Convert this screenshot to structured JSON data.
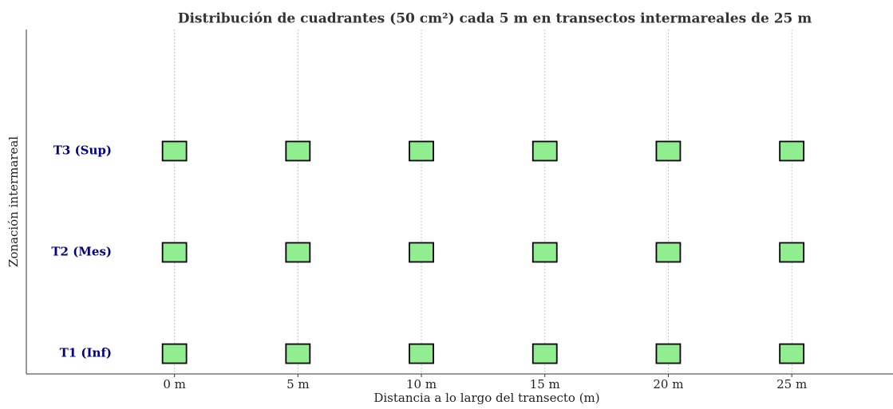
{
  "chart_data": {
    "type": "scatter",
    "title": "Distribución de cuadrantes (50 cm²) cada 5 m en transectos intermareales de 25 m",
    "x_label": "Distancia a lo largo del transecto (m)",
    "y_label": "Zonación intermareal",
    "x": [
      0,
      5,
      10,
      15,
      20,
      25,
      0,
      5,
      10,
      15,
      20,
      25,
      0,
      5,
      10,
      15,
      20,
      25
    ],
    "y": [
      0,
      0,
      0,
      0,
      0,
      0,
      1,
      1,
      1,
      1,
      1,
      1,
      2,
      2,
      2,
      2,
      2,
      2
    ],
    "color": "#90ee90",
    "edge_color": "#000000",
    "marker": "square",
    "xlim": [
      -6,
      29.1
    ],
    "ylim": [
      -0.2,
      3.2
    ],
    "xticks": [
      {
        "value": 0,
        "label": "0 m"
      },
      {
        "value": 5,
        "label": "5 m"
      },
      {
        "value": 10,
        "label": "10 m"
      },
      {
        "value": 15,
        "label": "15 m"
      },
      {
        "value": 20,
        "label": "20 m"
      },
      {
        "value": 25,
        "label": "25 m"
      }
    ],
    "yticks": [
      {
        "value": 0,
        "label": "T1 (Inf)"
      },
      {
        "value": 1,
        "label": "T2 (Mes)"
      },
      {
        "value": 2,
        "label": "T3 (Sup)"
      }
    ],
    "grid": "x"
  }
}
